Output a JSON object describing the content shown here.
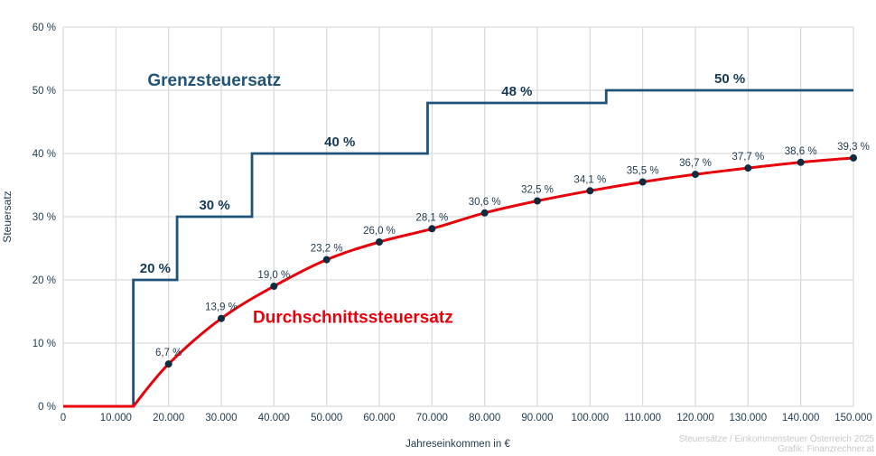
{
  "chart_data": {
    "type": "line",
    "title": "",
    "xlabel": "Jahreseinkommen in €",
    "ylabel": "Steuersatz",
    "xlim": [
      0,
      150000
    ],
    "ylim": [
      0,
      60
    ],
    "grid": true,
    "x_ticks": [
      0,
      10000,
      20000,
      30000,
      40000,
      50000,
      60000,
      70000,
      80000,
      90000,
      100000,
      110000,
      120000,
      130000,
      140000,
      150000
    ],
    "x_tick_labels": [
      "0",
      "10.000",
      "20.000",
      "30.000",
      "40.000",
      "50.000",
      "60.000",
      "70.000",
      "80.000",
      "90.000",
      "100.000",
      "110.000",
      "120.000",
      "130.000",
      "140.000",
      "150.000"
    ],
    "y_ticks": [
      0,
      10,
      20,
      30,
      40,
      50,
      60
    ],
    "y_tick_labels": [
      "0 %",
      "10 %",
      "20 %",
      "30 %",
      "40 %",
      "50 %",
      "60 %"
    ],
    "series": [
      {
        "name": "Grenzsteuersatz",
        "color": "#1f5478",
        "style": "step",
        "steps": [
          {
            "from": 0,
            "to": 13308,
            "rate": 0
          },
          {
            "from": 13308,
            "to": 21617,
            "rate": 20,
            "label": "20 %"
          },
          {
            "from": 21617,
            "to": 35836,
            "rate": 30,
            "label": "30 %"
          },
          {
            "from": 35836,
            "to": 69166,
            "rate": 40,
            "label": "40 %"
          },
          {
            "from": 69166,
            "to": 103072,
            "rate": 48,
            "label": "48 %"
          },
          {
            "from": 103072,
            "to": 150000,
            "rate": 50,
            "label": "50 %"
          }
        ]
      },
      {
        "name": "Durchschnittssteuersatz",
        "color": "#e8000b",
        "style": "line",
        "x": [
          0,
          13308,
          20000,
          30000,
          40000,
          50000,
          60000,
          70000,
          80000,
          90000,
          100000,
          110000,
          120000,
          130000,
          140000,
          150000
        ],
        "values": [
          0,
          0,
          6.7,
          13.9,
          19.0,
          23.2,
          26.0,
          28.1,
          30.6,
          32.5,
          34.1,
          35.5,
          36.7,
          37.7,
          38.6,
          39.3
        ],
        "markers": [
          {
            "x": 20000,
            "value": 6.7,
            "label": "6,7 %"
          },
          {
            "x": 30000,
            "value": 13.9,
            "label": "13,9 %"
          },
          {
            "x": 40000,
            "value": 19.0,
            "label": "19,0 %"
          },
          {
            "x": 50000,
            "value": 23.2,
            "label": "23,2 %"
          },
          {
            "x": 60000,
            "value": 26.0,
            "label": "26,0 %"
          },
          {
            "x": 70000,
            "value": 28.1,
            "label": "28,1 %"
          },
          {
            "x": 80000,
            "value": 30.6,
            "label": "30,6 %"
          },
          {
            "x": 90000,
            "value": 32.5,
            "label": "32,5 %"
          },
          {
            "x": 100000,
            "value": 34.1,
            "label": "34,1 %"
          },
          {
            "x": 110000,
            "value": 35.5,
            "label": "35,5 %"
          },
          {
            "x": 120000,
            "value": 36.7,
            "label": "36,7 %"
          },
          {
            "x": 130000,
            "value": 37.7,
            "label": "37,7 %"
          },
          {
            "x": 140000,
            "value": 38.6,
            "label": "38,6 %"
          },
          {
            "x": 150000,
            "value": 39.3,
            "label": "39,3 %"
          }
        ]
      }
    ],
    "annotations": [
      {
        "text": "Grenzsteuersatz",
        "color": "#1f5478",
        "x": 16000,
        "y": 50.7
      },
      {
        "text": "Durchschnittssteuersatz",
        "color": "#e8000b",
        "x": 36000,
        "y": 13.2
      }
    ],
    "source_note": [
      "Steuersätze / Einkommensteuer Österreich 2025",
      "Grafik: Finanzrechner.at"
    ]
  },
  "colors": {
    "marginal": "#1f5478",
    "average": "#e8000b",
    "marker": "#0f2b40",
    "grid": "#dcdcdc",
    "tick_text": "#1f3a4f",
    "note_text": "#c8c8c8"
  }
}
